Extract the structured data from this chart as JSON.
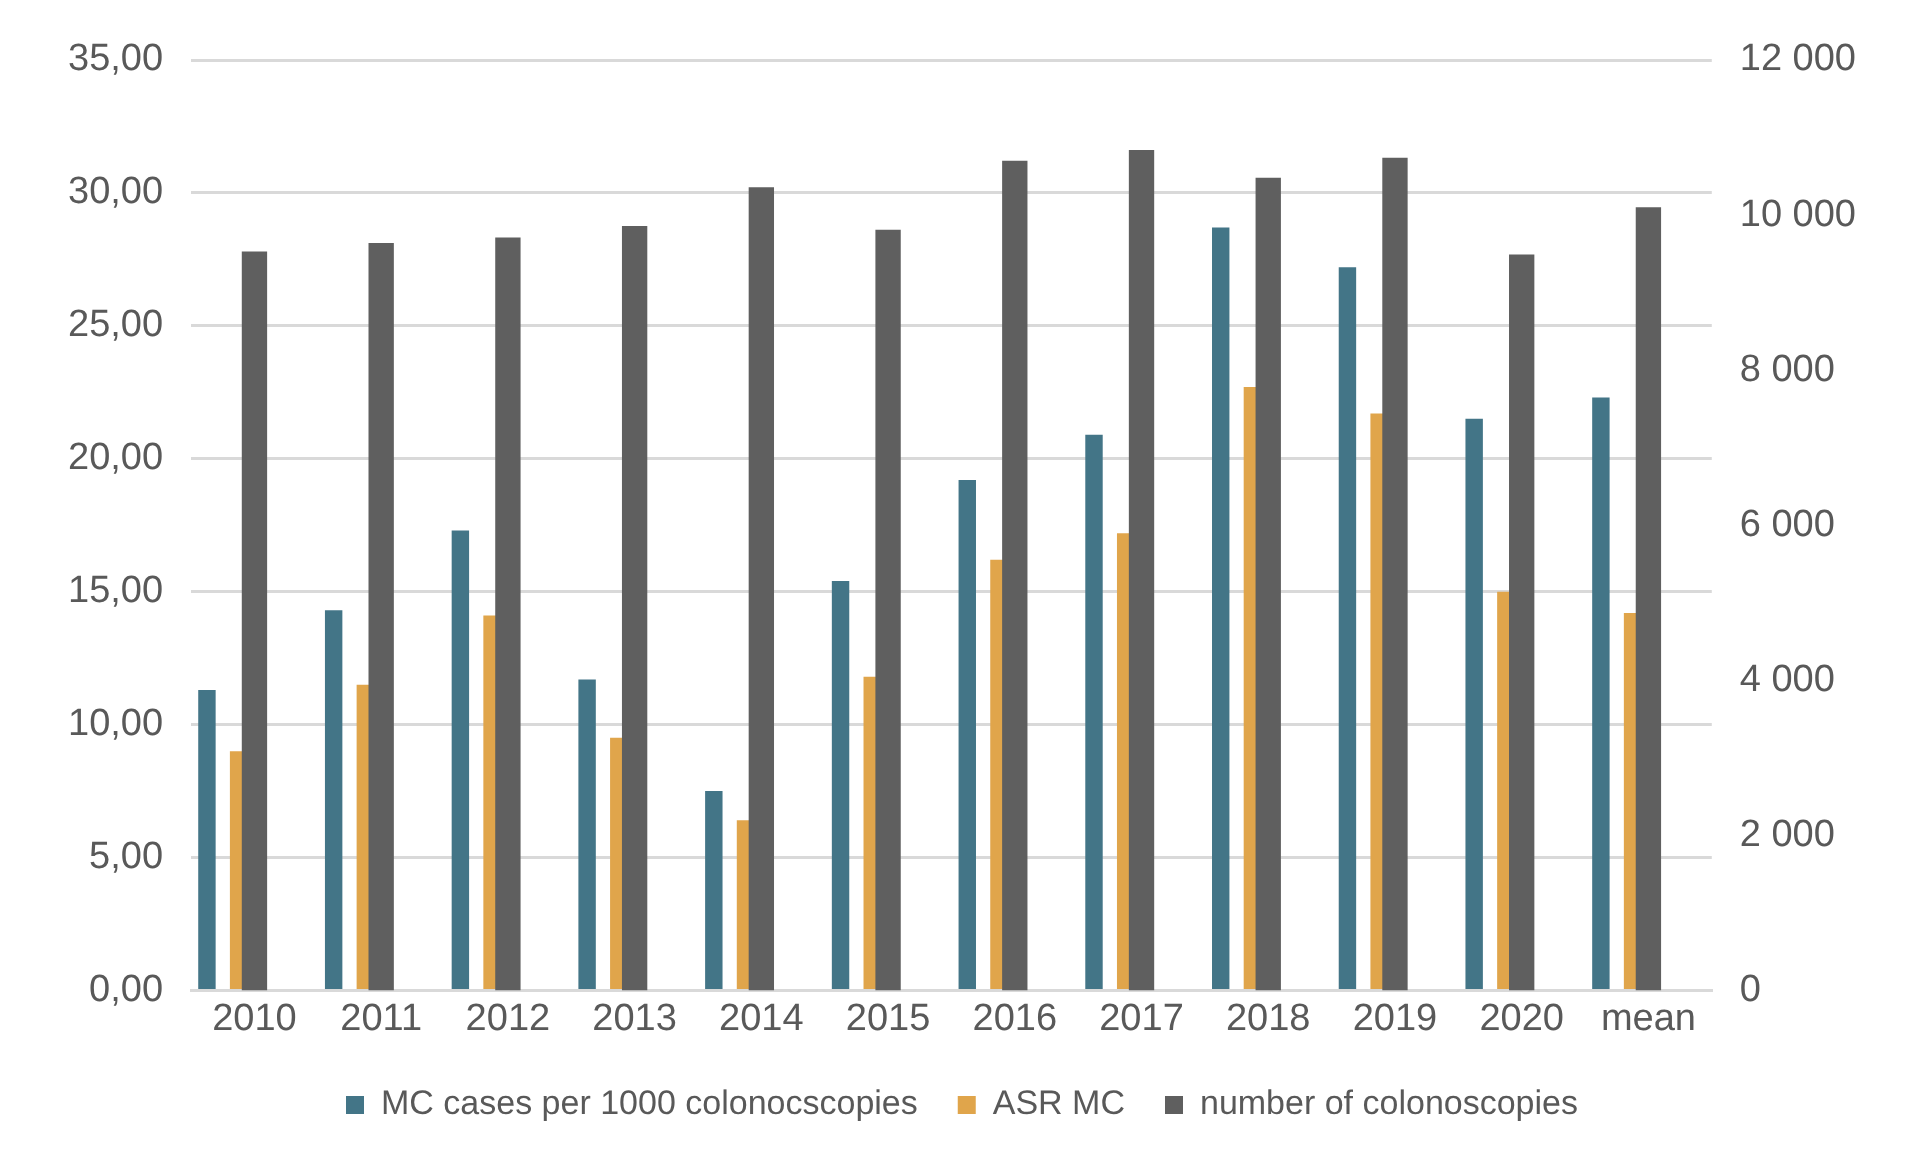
{
  "chart_data": {
    "type": "bar",
    "categories": [
      "2010",
      "2011",
      "2012",
      "2013",
      "2014",
      "2015",
      "2016",
      "2017",
      "2018",
      "2019",
      "2020",
      "mean"
    ],
    "series": [
      {
        "name": "MC cases per 1000 colonocscopies",
        "color": "#437587",
        "values": [
          11.3,
          14.3,
          17.3,
          11.7,
          7.5,
          15.4,
          19.2,
          20.9,
          28.7,
          27.2,
          21.5,
          22.3
        ]
      },
      {
        "name": "ASR MC",
        "color": "#e0a54b",
        "values": [
          9.0,
          11.5,
          14.1,
          9.5,
          6.4,
          11.8,
          16.2,
          17.2,
          22.7,
          21.7,
          15.0,
          14.2
        ]
      },
      {
        "name": "number of colonoscopies",
        "color": "#5f5f5f",
        "axis": "y2",
        "values": [
          9530,
          9640,
          9710,
          9860,
          10360,
          9810,
          10700,
          10840,
          10480,
          10740,
          9490,
          10100
        ]
      }
    ],
    "ylim": [
      0,
      35
    ],
    "yticks": [
      {
        "value": 0,
        "label": "0,00"
      },
      {
        "value": 5,
        "label": "5,00"
      },
      {
        "value": 10,
        "label": "10,00"
      },
      {
        "value": 15,
        "label": "15,00"
      },
      {
        "value": 20,
        "label": "20,00"
      },
      {
        "value": 25,
        "label": "25,00"
      },
      {
        "value": 30,
        "label": "30,00"
      },
      {
        "value": 35,
        "label": "35,00"
      }
    ],
    "y2lim": [
      0,
      12000
    ],
    "y2ticks": [
      0,
      {
        "value": 2000,
        "label": "2 000"
      },
      {
        "value": 4000,
        "label": "4 000"
      },
      {
        "value": 6000,
        "label": "6 000"
      },
      {
        "value": 8000,
        "label": "8 000"
      },
      {
        "value": 10000,
        "label": "10 000"
      },
      {
        "value": 12000,
        "label": "12 000"
      }
    ],
    "grid": "y",
    "legend": "bottom"
  }
}
